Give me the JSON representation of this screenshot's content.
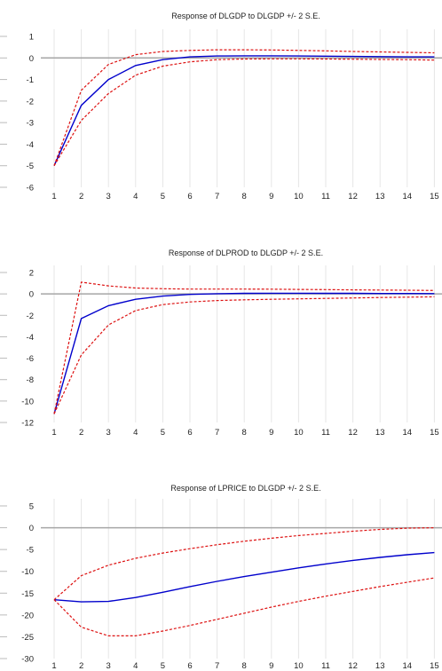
{
  "colors": {
    "response": "#0000cc",
    "bands": "#dd1111",
    "zero_line": "#a6a6a6",
    "grid": "#e6e6e6",
    "background": "#ffffff"
  },
  "chart_data": [
    {
      "type": "line",
      "title": "Response of DLGDP to DLGDP +/- 2 S.E.",
      "x": [
        1,
        2,
        3,
        4,
        5,
        6,
        7,
        8,
        9,
        10,
        11,
        12,
        13,
        14,
        15
      ],
      "ylim": [
        -6,
        1
      ],
      "yticks": [
        1,
        0,
        -1,
        -2,
        -3,
        -4,
        -5,
        -6
      ],
      "grid": "vertical",
      "series": [
        {
          "role": "response",
          "values": [
            -5.0,
            -2.2,
            -1.0,
            -0.35,
            -0.08,
            0.05,
            0.09,
            0.1,
            0.1,
            0.09,
            0.08,
            0.07,
            0.06,
            0.05,
            0.05
          ]
        },
        {
          "role": "upper",
          "values": [
            -5.0,
            -1.5,
            -0.3,
            0.15,
            0.3,
            0.35,
            0.38,
            0.38,
            0.37,
            0.35,
            0.33,
            0.3,
            0.28,
            0.26,
            0.24
          ]
        },
        {
          "role": "lower",
          "values": [
            -5.0,
            -2.9,
            -1.65,
            -0.8,
            -0.38,
            -0.18,
            -0.08,
            -0.05,
            -0.04,
            -0.04,
            -0.05,
            -0.06,
            -0.07,
            -0.08,
            -0.1
          ]
        }
      ]
    },
    {
      "type": "line",
      "title": "Response of DLPROD to DLGDP +/- 2 S.E.",
      "x": [
        1,
        2,
        3,
        4,
        5,
        6,
        7,
        8,
        9,
        10,
        11,
        12,
        13,
        14,
        15
      ],
      "ylim": [
        -12,
        2
      ],
      "yticks": [
        2,
        0,
        -2,
        -4,
        -6,
        -8,
        -10,
        -12
      ],
      "grid": "vertical",
      "series": [
        {
          "role": "response",
          "values": [
            -11.2,
            -2.3,
            -1.1,
            -0.5,
            -0.2,
            -0.05,
            0.02,
            0.05,
            0.06,
            0.06,
            0.05,
            0.05,
            0.04,
            0.04,
            0.03
          ]
        },
        {
          "role": "upper",
          "values": [
            -11.2,
            1.1,
            0.75,
            0.55,
            0.48,
            0.45,
            0.45,
            0.45,
            0.44,
            0.42,
            0.4,
            0.38,
            0.36,
            0.34,
            0.32
          ]
        },
        {
          "role": "lower",
          "values": [
            -11.2,
            -5.7,
            -2.9,
            -1.55,
            -1.0,
            -0.75,
            -0.62,
            -0.55,
            -0.5,
            -0.46,
            -0.42,
            -0.38,
            -0.34,
            -0.3,
            -0.27
          ]
        }
      ]
    },
    {
      "type": "line",
      "title": "Response of LPRICE to DLGDP +/- 2 S.E.",
      "x": [
        1,
        2,
        3,
        4,
        5,
        6,
        7,
        8,
        9,
        10,
        11,
        12,
        13,
        14,
        15
      ],
      "ylim": [
        -30,
        5
      ],
      "yticks": [
        5,
        0,
        -5,
        -10,
        -15,
        -20,
        -25,
        -30
      ],
      "grid": "vertical",
      "series": [
        {
          "role": "response",
          "values": [
            -16.5,
            -17.0,
            -16.9,
            -16.0,
            -14.8,
            -13.5,
            -12.3,
            -11.2,
            -10.2,
            -9.2,
            -8.3,
            -7.5,
            -6.8,
            -6.2,
            -5.7
          ]
        },
        {
          "role": "upper",
          "values": [
            -16.5,
            -11.0,
            -8.6,
            -7.0,
            -5.8,
            -4.8,
            -3.9,
            -3.1,
            -2.4,
            -1.8,
            -1.3,
            -0.8,
            -0.4,
            -0.1,
            0.0
          ]
        },
        {
          "role": "lower",
          "values": [
            -16.5,
            -22.8,
            -24.8,
            -24.8,
            -23.7,
            -22.4,
            -21.0,
            -19.6,
            -18.2,
            -16.9,
            -15.7,
            -14.6,
            -13.5,
            -12.5,
            -11.5
          ]
        }
      ]
    }
  ]
}
